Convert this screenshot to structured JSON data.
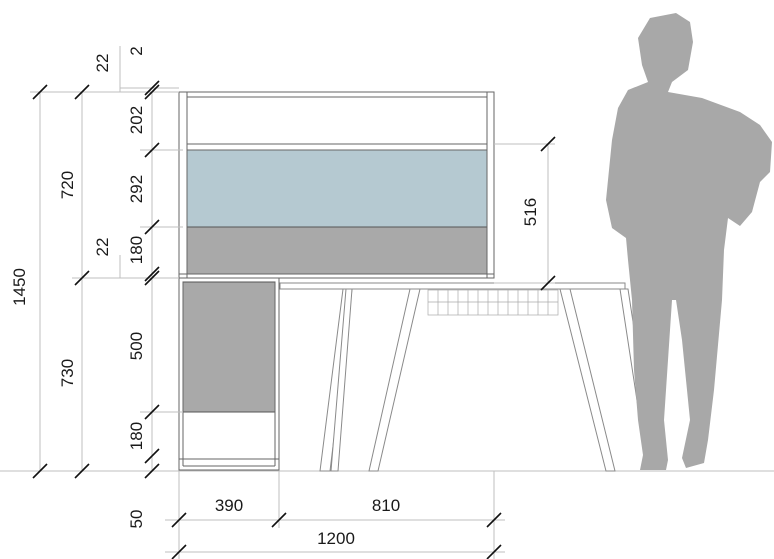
{
  "drawing": {
    "colors": {
      "upholstery_blue": "#b5c9d1",
      "upholstery_grey": "#a9a9a9",
      "silhouette": "#a8a8a8",
      "frame": "#777777"
    },
    "dimensions": {
      "total_height": "1450",
      "upper_height": "720",
      "lower_height": "730",
      "top_gap_upper": "22",
      "top_gap_detail": "2",
      "mid_gap": "22",
      "panel_top": "202",
      "panel_blue": "292",
      "panel_grey": "180",
      "cabinet_panel": "500",
      "cabinet_base": "180",
      "desk_screen": "516",
      "base_offset": "50",
      "cabinet_width": "390",
      "desk_width": "810",
      "overall_width": "1200"
    }
  }
}
